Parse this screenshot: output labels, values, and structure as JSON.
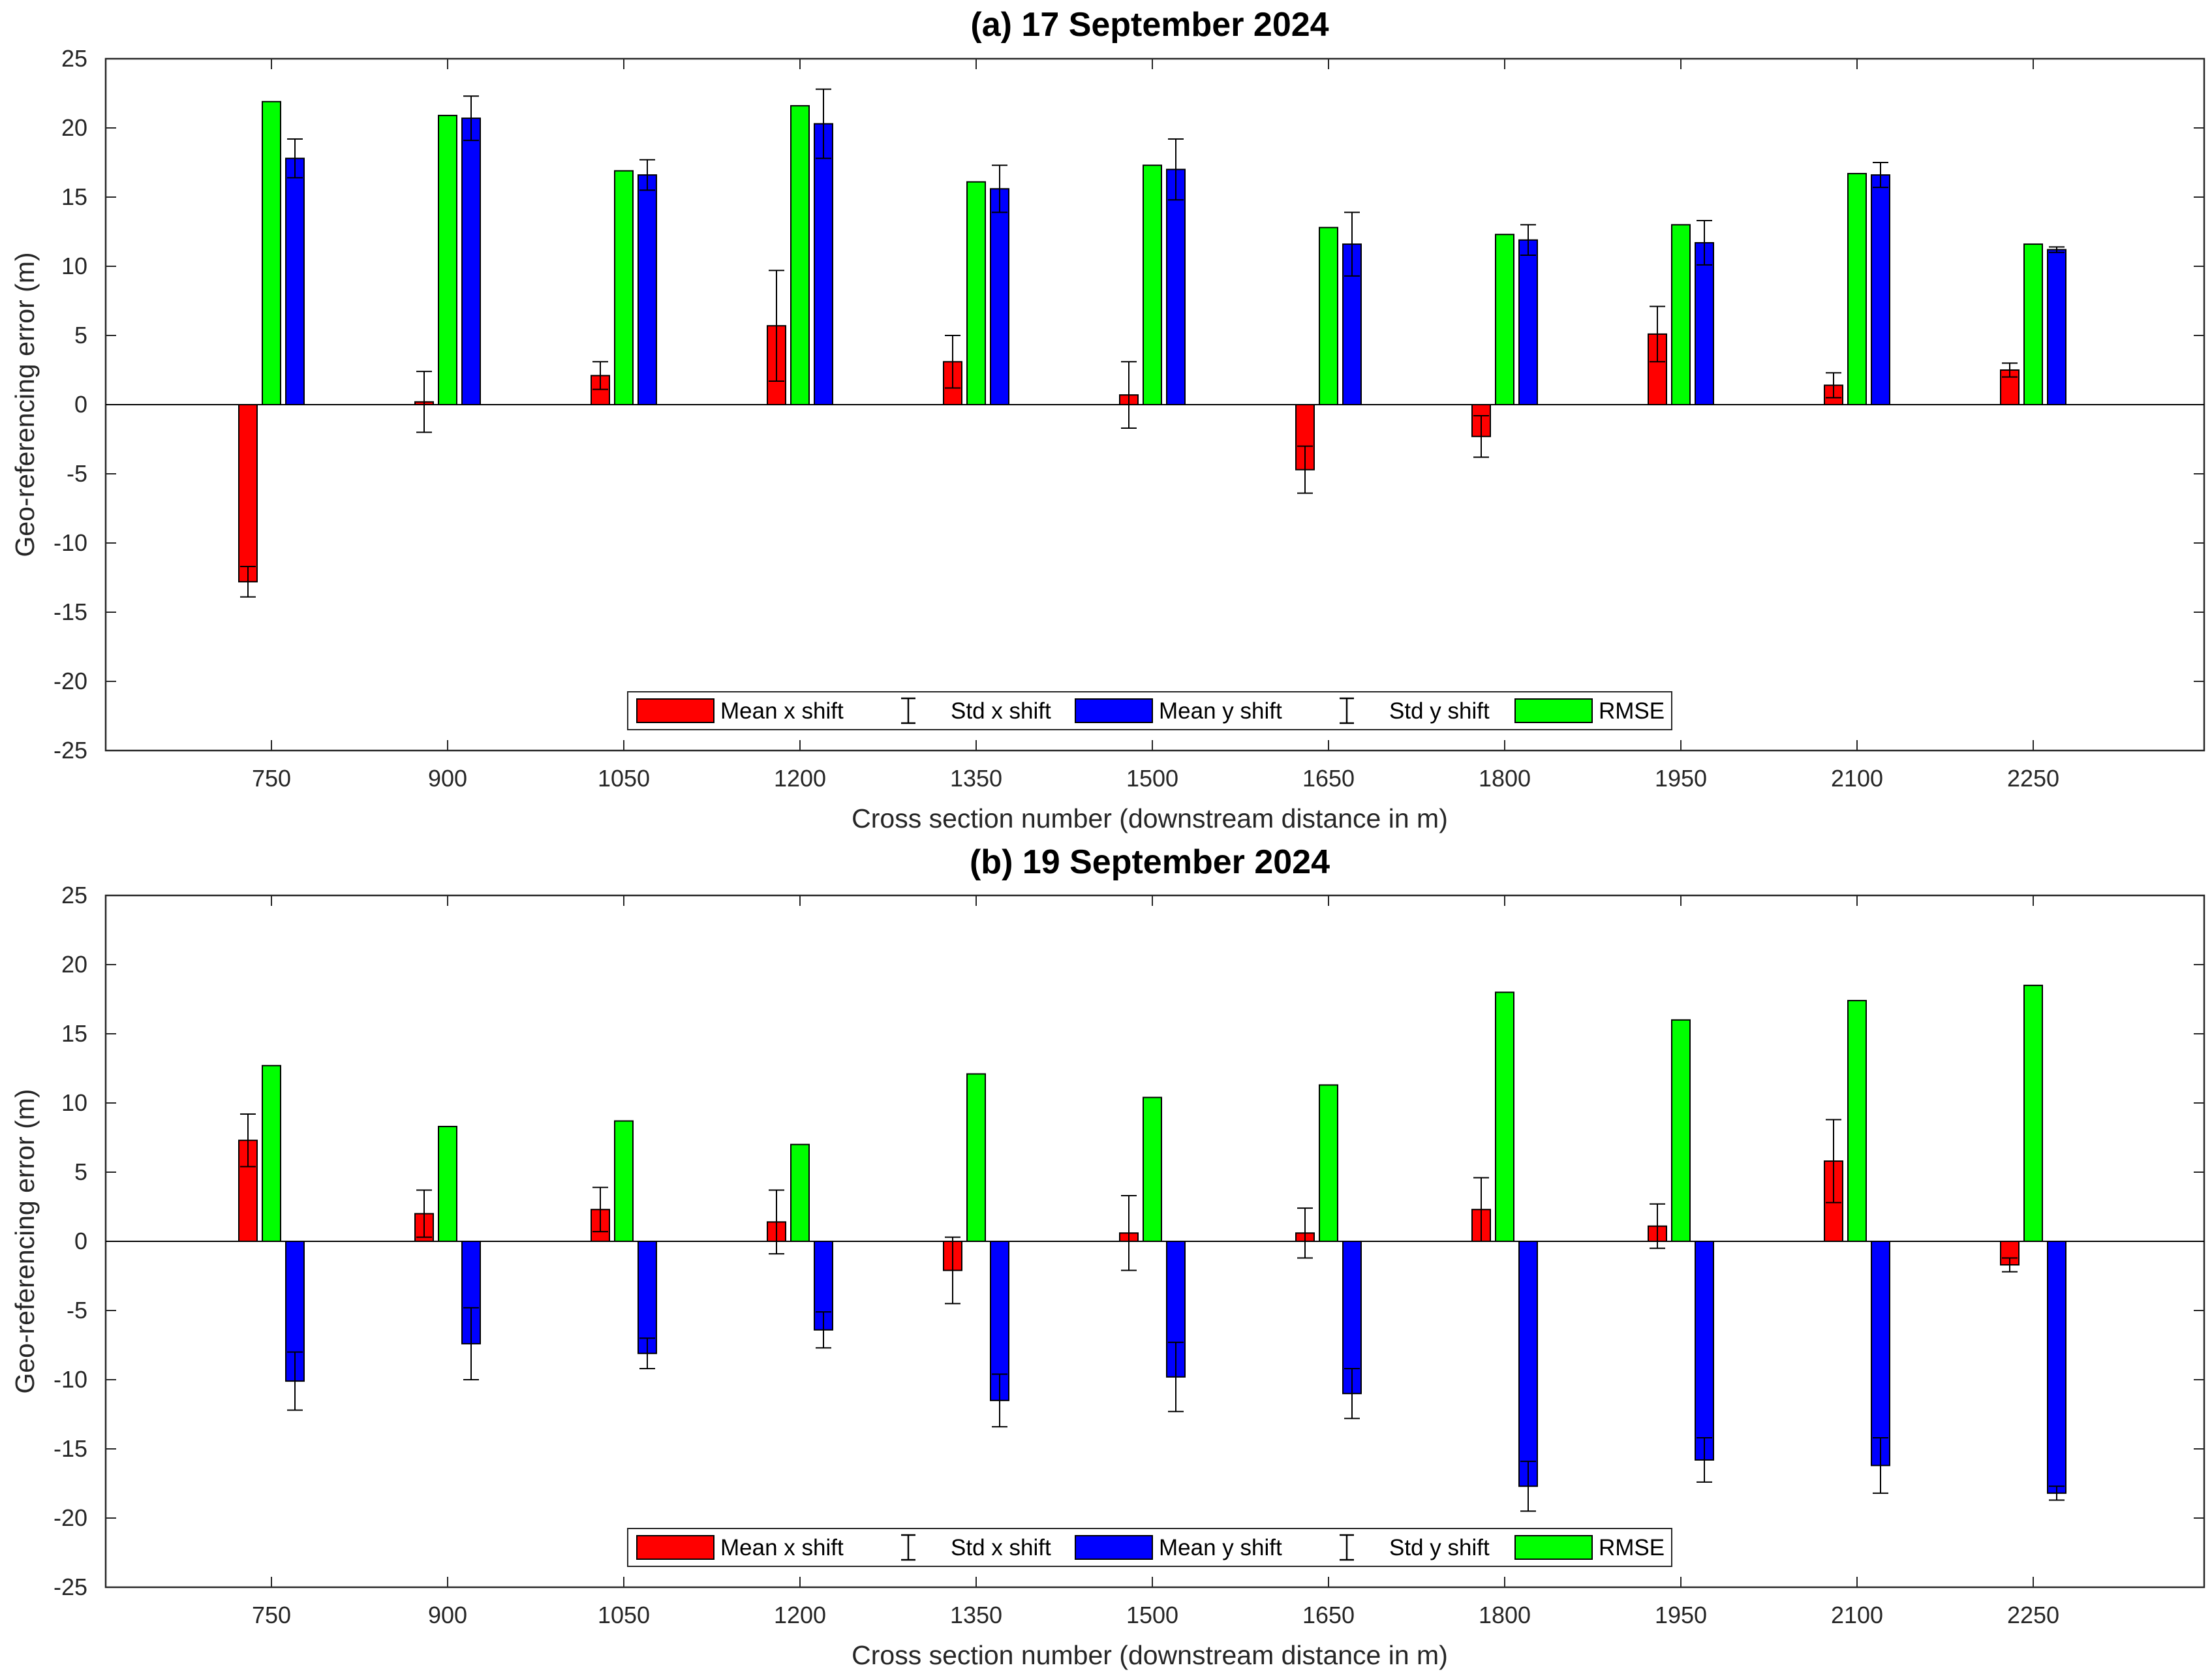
{
  "chart_data": [
    {
      "type": "bar",
      "title": "(a) 17 September 2024",
      "xlabel": "Cross section number (downstream distance in m)",
      "ylabel": "Geo-referencing error (m)",
      "ylim": [
        -25,
        25
      ],
      "yticks": [
        "25",
        "20",
        "15",
        "10",
        "5",
        "0",
        "-5",
        "-10",
        "-15",
        "-20",
        "-25"
      ],
      "categories": [
        "750",
        "900",
        "1050",
        "1200",
        "1350",
        "1500",
        "1650",
        "1800",
        "1950",
        "2100",
        "2250"
      ],
      "legend_position": "bottom-center",
      "legend": [
        "Mean x shift",
        "Std x shift",
        "Mean y shift",
        "Std y shift",
        "RMSE"
      ],
      "series": [
        {
          "name": "Mean x shift",
          "color": "#ff0000",
          "values": [
            -12.8,
            0.2,
            2.1,
            5.7,
            3.1,
            0.7,
            -4.7,
            -2.3,
            5.1,
            1.4,
            2.5
          ],
          "std": [
            1.1,
            2.2,
            1.0,
            4.0,
            1.9,
            2.4,
            1.7,
            1.5,
            2.0,
            0.9,
            0.5
          ]
        },
        {
          "name": "Mean y shift",
          "color": "#0000ff",
          "values": [
            17.8,
            20.7,
            16.6,
            20.3,
            15.6,
            17.0,
            11.6,
            11.9,
            11.7,
            16.6,
            11.2
          ],
          "std": [
            1.4,
            1.6,
            1.1,
            2.5,
            1.7,
            2.2,
            2.3,
            1.1,
            1.6,
            0.9,
            0.2
          ]
        },
        {
          "name": "RMSE",
          "color": "#00ff00",
          "values": [
            21.9,
            20.9,
            16.9,
            21.6,
            16.1,
            17.3,
            12.8,
            12.3,
            13.0,
            16.7,
            11.6
          ]
        }
      ]
    },
    {
      "type": "bar",
      "title": "(b) 19 September 2024",
      "xlabel": "Cross section number (downstream distance in m)",
      "ylabel": "Geo-referencing error (m)",
      "ylim": [
        -25,
        25
      ],
      "yticks": [
        "25",
        "20",
        "15",
        "10",
        "5",
        "0",
        "-5",
        "-10",
        "-15",
        "-20",
        "-25"
      ],
      "categories": [
        "750",
        "900",
        "1050",
        "1200",
        "1350",
        "1500",
        "1650",
        "1800",
        "1950",
        "2100",
        "2250"
      ],
      "legend_position": "bottom-center",
      "legend": [
        "Mean x shift",
        "Std x shift",
        "Mean y shift",
        "Std y shift",
        "RMSE"
      ],
      "series": [
        {
          "name": "Mean x shift",
          "color": "#ff0000",
          "values": [
            7.3,
            2.0,
            2.3,
            1.4,
            -2.1,
            0.6,
            0.6,
            2.3,
            1.1,
            5.8,
            -1.7
          ],
          "std": [
            1.9,
            1.7,
            1.6,
            2.3,
            2.4,
            2.7,
            1.8,
            2.3,
            1.6,
            3.0,
            0.5
          ]
        },
        {
          "name": "Mean y shift",
          "color": "#0000ff",
          "values": [
            -10.1,
            -7.4,
            -8.1,
            -6.4,
            -11.5,
            -9.8,
            -11.0,
            -17.7,
            -15.8,
            -16.2,
            -18.2
          ],
          "std": [
            2.1,
            2.6,
            1.1,
            1.3,
            1.9,
            2.5,
            1.8,
            1.8,
            1.6,
            2.0,
            0.5
          ]
        },
        {
          "name": "RMSE",
          "color": "#00ff00",
          "values": [
            12.7,
            8.3,
            8.7,
            7.0,
            12.1,
            10.4,
            11.3,
            18.0,
            16.0,
            17.4,
            18.5
          ]
        }
      ]
    }
  ]
}
